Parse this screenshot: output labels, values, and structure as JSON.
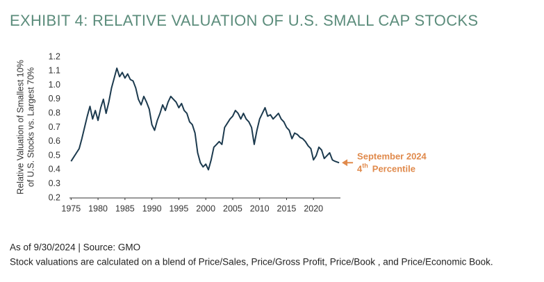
{
  "chart_data": {
    "type": "line",
    "title": "EXHIBIT 4: RELATIVE VALUATION OF U.S. SMALL CAP STOCKS",
    "y_label": [
      "Relative Valuation of Smallest 10%",
      "of U.S. Stocks vs. Largest 70%"
    ],
    "x": [
      1975.0,
      1975.5,
      1976.0,
      1976.5,
      1977.0,
      1977.5,
      1978.0,
      1978.5,
      1979.0,
      1979.5,
      1980.0,
      1980.5,
      1981.0,
      1981.5,
      1982.0,
      1982.5,
      1983.0,
      1983.5,
      1984.0,
      1984.5,
      1985.0,
      1985.5,
      1986.0,
      1986.5,
      1987.0,
      1987.5,
      1988.0,
      1988.5,
      1989.0,
      1989.5,
      1990.0,
      1990.5,
      1991.0,
      1991.5,
      1992.0,
      1992.5,
      1993.0,
      1993.5,
      1994.0,
      1994.5,
      1995.0,
      1995.5,
      1996.0,
      1996.5,
      1997.0,
      1997.5,
      1998.0,
      1998.5,
      1999.0,
      1999.5,
      2000.0,
      2000.5,
      2001.0,
      2001.5,
      2002.0,
      2002.5,
      2003.0,
      2003.5,
      2004.0,
      2004.5,
      2005.0,
      2005.5,
      2006.0,
      2006.5,
      2007.0,
      2007.5,
      2008.0,
      2008.5,
      2009.0,
      2009.5,
      2010.0,
      2010.5,
      2011.0,
      2011.5,
      2012.0,
      2012.5,
      2013.0,
      2013.5,
      2014.0,
      2014.5,
      2015.0,
      2015.5,
      2016.0,
      2016.5,
      2017.0,
      2017.5,
      2018.0,
      2018.5,
      2019.0,
      2019.5,
      2020.0,
      2020.5,
      2021.0,
      2021.5,
      2022.0,
      2022.5,
      2023.0,
      2023.5,
      2024.0,
      2024.75
    ],
    "series": [
      {
        "color": "#1c3a4e",
        "values": [
          0.46,
          0.49,
          0.52,
          0.55,
          0.62,
          0.7,
          0.78,
          0.85,
          0.76,
          0.82,
          0.75,
          0.84,
          0.9,
          0.8,
          0.88,
          0.98,
          1.05,
          1.12,
          1.06,
          1.09,
          1.05,
          1.08,
          1.04,
          1.03,
          0.98,
          0.9,
          0.86,
          0.92,
          0.88,
          0.83,
          0.72,
          0.68,
          0.75,
          0.8,
          0.86,
          0.82,
          0.88,
          0.92,
          0.9,
          0.88,
          0.84,
          0.87,
          0.82,
          0.8,
          0.74,
          0.72,
          0.66,
          0.52,
          0.45,
          0.42,
          0.44,
          0.4,
          0.47,
          0.56,
          0.58,
          0.6,
          0.58,
          0.7,
          0.73,
          0.76,
          0.78,
          0.82,
          0.8,
          0.76,
          0.8,
          0.76,
          0.74,
          0.7,
          0.58,
          0.68,
          0.76,
          0.8,
          0.84,
          0.78,
          0.79,
          0.76,
          0.78,
          0.8,
          0.76,
          0.74,
          0.7,
          0.68,
          0.62,
          0.66,
          0.65,
          0.63,
          0.62,
          0.6,
          0.57,
          0.55,
          0.47,
          0.5,
          0.56,
          0.54,
          0.48,
          0.5,
          0.52,
          0.47,
          0.46,
          0.45
        ]
      }
    ],
    "xlim": [
      1974.7,
      2025
    ],
    "xticks": [
      1975,
      1980,
      1985,
      1990,
      1995,
      2000,
      2005,
      2010,
      2015,
      2020
    ],
    "ylim": [
      0.2,
      1.2
    ],
    "yticks": [
      0.2,
      0.3,
      0.4,
      0.5,
      0.6,
      0.7,
      0.8,
      0.9,
      {
        "value": 1,
        "label": "1.0"
      },
      1.1,
      1.2
    ],
    "annotation": {
      "color": "#e08a4c",
      "line1": "September 2024",
      "line2": {
        "number": "4",
        "suffix": "th",
        "word": "Percentile"
      }
    },
    "footnotes": [
      "As of 9/30/2024 | Source: GMO",
      "Stock valuations are calculated on a blend of Price/Sales, Price/Gross Profit, Price/Book , and Price/Economic Book."
    ]
  }
}
